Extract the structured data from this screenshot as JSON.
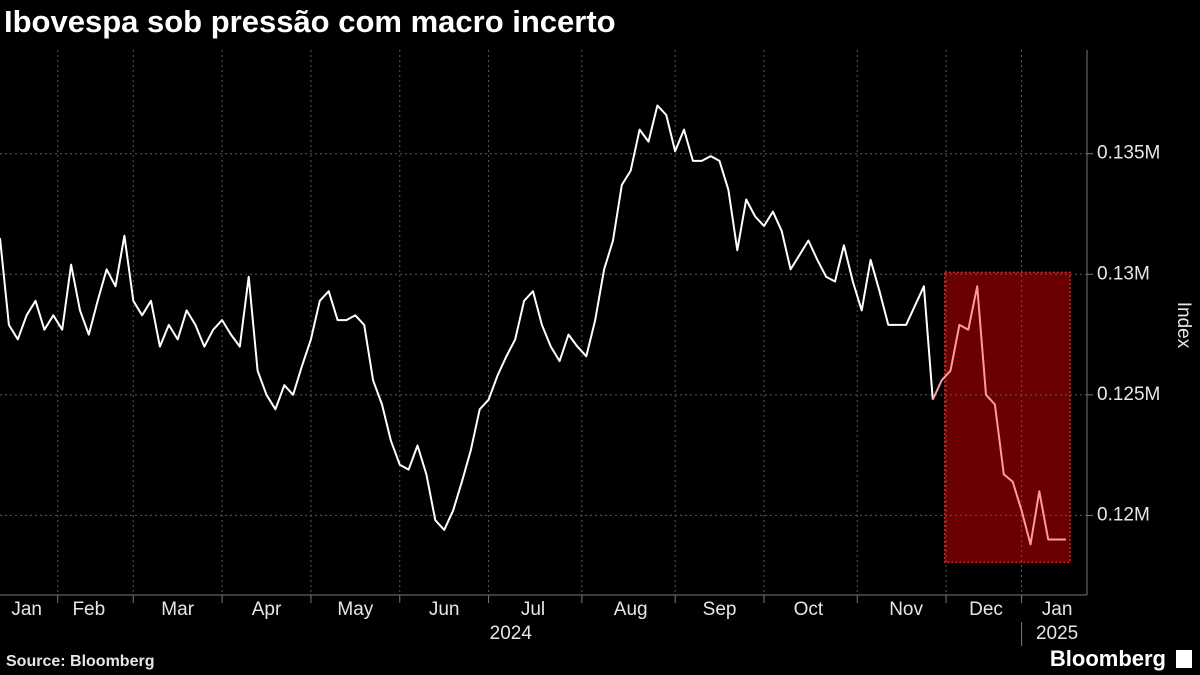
{
  "chart_data": {
    "type": "line",
    "title": "Ibovespa sob pressão com macro incerto",
    "y_label": "Index",
    "source": "Source: Bloomberg",
    "brand": "Bloomberg",
    "years": [
      "2024",
      "2025"
    ],
    "categories": [
      null,
      null,
      null,
      "Jan",
      null,
      null,
      null,
      null,
      null,
      null,
      "Feb",
      null,
      null,
      null,
      null,
      null,
      null,
      null,
      null,
      null,
      "Mar",
      null,
      null,
      null,
      null,
      null,
      null,
      null,
      null,
      null,
      "Apr",
      null,
      null,
      null,
      null,
      null,
      null,
      null,
      null,
      null,
      "May",
      null,
      null,
      null,
      null,
      null,
      null,
      null,
      null,
      null,
      "Jun",
      null,
      null,
      null,
      null,
      null,
      null,
      null,
      null,
      null,
      "Jul",
      null,
      null,
      null,
      null,
      null,
      null,
      null,
      null,
      null,
      null,
      "Aug",
      null,
      null,
      null,
      null,
      null,
      null,
      null,
      null,
      null,
      "Sep",
      null,
      null,
      null,
      null,
      null,
      null,
      null,
      null,
      null,
      "Oct",
      null,
      null,
      null,
      null,
      null,
      null,
      null,
      null,
      null,
      null,
      "Nov",
      null,
      null,
      null,
      null,
      null,
      null,
      null,
      null,
      "Dec",
      null,
      null,
      null,
      null,
      null,
      null,
      null,
      "Jan",
      null
    ],
    "series": [
      {
        "color": "#ffffff",
        "values": [
          131500,
          127900,
          127300,
          128300,
          128900,
          127700,
          128300,
          127700,
          130400,
          128500,
          127500,
          128900,
          130200,
          129500,
          131600,
          128900,
          128300,
          128900,
          127000,
          127900,
          127300,
          128500,
          127900,
          127000,
          127700,
          128100,
          127500,
          127000,
          129900,
          126000,
          125000,
          124400,
          125400,
          125000,
          126200,
          127300,
          128900,
          129300,
          128100,
          128100,
          128300,
          127900,
          125600,
          124600,
          123100,
          122100,
          121900,
          122900,
          121700,
          119800,
          119400,
          120200,
          121400,
          122700,
          124400,
          124800,
          125800,
          126600,
          127300,
          128900,
          129300,
          127900,
          127000,
          126400,
          127500,
          127000,
          126600,
          128100,
          130200,
          131400,
          133700,
          134300,
          136000,
          135500,
          137000,
          136600,
          135100,
          136000,
          134700,
          134700,
          134900,
          134700,
          133500,
          131000,
          133100,
          132400,
          132000,
          132600,
          131800,
          130200,
          130800,
          131400,
          130600,
          129900,
          129700,
          131200,
          129700,
          128500,
          130600,
          129300,
          127900,
          127900,
          127900,
          128700,
          129500,
          124800,
          null,
          null,
          null,
          null,
          null,
          null,
          null,
          null,
          null,
          null,
          null,
          null,
          null,
          null,
          null
        ]
      },
      {
        "color": "#ff9c9c",
        "values": [
          null,
          null,
          null,
          null,
          null,
          null,
          null,
          null,
          null,
          null,
          null,
          null,
          null,
          null,
          null,
          null,
          null,
          null,
          null,
          null,
          null,
          null,
          null,
          null,
          null,
          null,
          null,
          null,
          null,
          null,
          null,
          null,
          null,
          null,
          null,
          null,
          null,
          null,
          null,
          null,
          null,
          null,
          null,
          null,
          null,
          null,
          null,
          null,
          null,
          null,
          null,
          null,
          null,
          null,
          null,
          null,
          null,
          null,
          null,
          null,
          null,
          null,
          null,
          null,
          null,
          null,
          null,
          null,
          null,
          null,
          null,
          null,
          null,
          null,
          null,
          null,
          null,
          null,
          null,
          null,
          null,
          null,
          null,
          null,
          null,
          null,
          null,
          null,
          null,
          null,
          null,
          null,
          null,
          null,
          null,
          null,
          null,
          null,
          null,
          null,
          null,
          null,
          null,
          null,
          null,
          124800,
          125600,
          126000,
          127900,
          127700,
          129500,
          125000,
          124600,
          121700,
          121400,
          120200,
          118800,
          121000,
          119000,
          119000,
          119000
        ]
      }
    ],
    "highlight_color": "#6b0000",
    "ylim": [
      116700,
      139300
    ],
    "yticks": [
      {
        "value": 120000,
        "label": "0.12M"
      },
      {
        "value": 125000,
        "label": "0.125M"
      },
      {
        "value": 130000,
        "label": "0.13M"
      },
      {
        "value": 135000,
        "label": "0.135M"
      }
    ],
    "grid": true
  }
}
